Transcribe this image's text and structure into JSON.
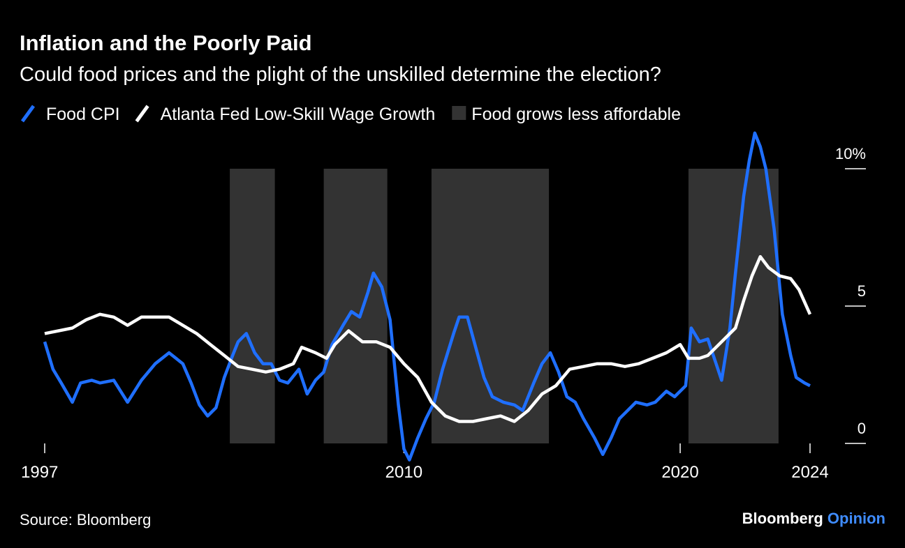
{
  "chart_data": {
    "type": "line",
    "title": "Inflation and the Poorly Paid",
    "subtitle": "Could food prices and the plight of the unskilled determine the election?",
    "source": "Source: Bloomberg",
    "brand": [
      "Bloomberg",
      "Opinion"
    ],
    "shaded": {
      "name": "Food grows less affordable",
      "color": "#333333",
      "ranges": [
        [
          2003.7,
          2005.33
        ],
        [
          2007.1,
          2009.4
        ],
        [
          2011.0,
          2015.25
        ],
        [
          2020.3,
          2023.56
        ]
      ]
    },
    "series": [
      {
        "name": "Food CPI",
        "color": "#1f6fff",
        "x": [
          1997.0,
          1997.3,
          1997.6,
          1998.0,
          1998.3,
          1998.7,
          1999.0,
          1999.5,
          2000.0,
          2000.5,
          2001.0,
          2001.5,
          2002.0,
          2002.3,
          2002.6,
          2002.9,
          2003.2,
          2003.5,
          2003.8,
          2004.0,
          2004.3,
          2004.6,
          2004.9,
          2005.2,
          2005.5,
          2005.8,
          2006.2,
          2006.5,
          2006.8,
          2007.1,
          2007.4,
          2007.8,
          2008.1,
          2008.4,
          2008.7,
          2008.9,
          2009.2,
          2009.5,
          2009.8,
          2010.0,
          2010.2,
          2010.5,
          2010.8,
          2011.1,
          2011.4,
          2011.8,
          2012.0,
          2012.3,
          2012.6,
          2012.9,
          2013.2,
          2013.6,
          2014.0,
          2014.3,
          2014.7,
          2015.0,
          2015.3,
          2015.6,
          2015.9,
          2016.2,
          2016.5,
          2016.9,
          2017.2,
          2017.5,
          2017.8,
          2018.1,
          2018.4,
          2018.8,
          2019.1,
          2019.5,
          2019.8,
          2020.2,
          2020.4,
          2020.7,
          2021.0,
          2021.3,
          2021.5,
          2021.8,
          2022.0,
          2022.3,
          2022.5,
          2022.7,
          2022.9,
          2023.1,
          2023.4,
          2023.7,
          2024.0,
          2024.2,
          2024.5,
          2024.7
        ],
        "values": [
          3.7,
          2.7,
          2.2,
          1.5,
          2.2,
          2.3,
          2.2,
          2.3,
          1.5,
          2.3,
          2.9,
          3.3,
          2.9,
          2.2,
          1.4,
          1.0,
          1.3,
          2.4,
          3.2,
          3.7,
          4.0,
          3.3,
          2.9,
          2.9,
          2.3,
          2.2,
          2.7,
          1.8,
          2.3,
          2.6,
          3.6,
          4.3,
          4.8,
          4.6,
          5.5,
          6.2,
          5.7,
          4.5,
          1.4,
          -0.2,
          -0.6,
          0.2,
          0.9,
          1.5,
          2.7,
          4.0,
          4.6,
          4.6,
          3.5,
          2.4,
          1.7,
          1.5,
          1.4,
          1.2,
          2.2,
          2.9,
          3.3,
          2.6,
          1.7,
          1.5,
          0.9,
          0.2,
          -0.4,
          0.2,
          0.9,
          1.2,
          1.5,
          1.4,
          1.5,
          1.9,
          1.7,
          2.1,
          4.2,
          3.7,
          3.8,
          2.9,
          2.3,
          4.2,
          6.2,
          9.0,
          10.3,
          11.3,
          10.8,
          10.0,
          7.8,
          4.7,
          3.2,
          2.4,
          2.2,
          2.1
        ]
      },
      {
        "name": "Atlanta Fed Low-Skill Wage Growth",
        "color": "#ffffff",
        "x": [
          1997.0,
          1997.5,
          1998.0,
          1998.5,
          1999.0,
          1999.5,
          2000.0,
          2000.5,
          2001.0,
          2001.5,
          2002.0,
          2002.5,
          2003.0,
          2003.5,
          2004.0,
          2004.5,
          2005.0,
          2005.5,
          2006.0,
          2006.3,
          2006.8,
          2007.2,
          2007.5,
          2008.0,
          2008.5,
          2009.0,
          2009.5,
          2010.0,
          2010.5,
          2011.0,
          2011.5,
          2012.0,
          2012.5,
          2013.0,
          2013.5,
          2014.0,
          2014.5,
          2015.0,
          2015.5,
          2016.0,
          2016.5,
          2017.0,
          2017.5,
          2018.0,
          2018.5,
          2019.0,
          2019.5,
          2020.0,
          2020.3,
          2020.7,
          2021.0,
          2021.5,
          2022.0,
          2022.3,
          2022.6,
          2022.9,
          2023.2,
          2023.6,
          2024.0,
          2024.3,
          2024.7
        ],
        "values": [
          4.0,
          4.1,
          4.2,
          4.5,
          4.7,
          4.6,
          4.3,
          4.6,
          4.6,
          4.6,
          4.3,
          4.0,
          3.6,
          3.2,
          2.8,
          2.7,
          2.6,
          2.7,
          2.9,
          3.5,
          3.3,
          3.1,
          3.6,
          4.1,
          3.7,
          3.7,
          3.5,
          2.9,
          2.4,
          1.5,
          1.0,
          0.8,
          0.8,
          0.9,
          1.0,
          0.8,
          1.2,
          1.8,
          2.1,
          2.7,
          2.8,
          2.9,
          2.9,
          2.8,
          2.9,
          3.1,
          3.3,
          3.6,
          3.1,
          3.1,
          3.2,
          3.7,
          4.2,
          5.2,
          6.1,
          6.8,
          6.4,
          6.1,
          6.0,
          5.6,
          4.7
        ]
      }
    ],
    "xlim": [
      1997,
      2024.7
    ],
    "xticks": [
      1997,
      2010,
      2020,
      {
        "value": 2024.7,
        "label": "2024"
      }
    ],
    "ylim": [
      -1,
      11.5
    ],
    "yticks": [
      0,
      5,
      {
        "value": 10,
        "label": "10%"
      }
    ]
  }
}
